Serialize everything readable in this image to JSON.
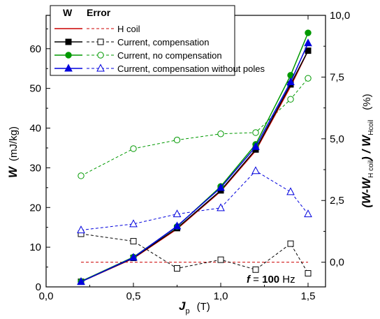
{
  "chart_data": {
    "type": "line",
    "x_axis": {
      "symbol": "J",
      "subscript": "p",
      "unit": "(T)",
      "lim": [
        0,
        1.6
      ],
      "ticks": [
        0,
        0.5,
        1.0,
        1.5
      ],
      "tick_labels": [
        "0,0",
        "0,5",
        "1,0",
        "1,5"
      ]
    },
    "y_axis_left": {
      "symbol": "W",
      "unit": "(mJ/kg)",
      "lim": [
        0,
        68.4
      ],
      "ticks": [
        0,
        10,
        20,
        30,
        40,
        50,
        60
      ],
      "tick_labels": [
        "0",
        "10",
        "20",
        "30",
        "40",
        "50",
        "60"
      ]
    },
    "y_axis_right": {
      "label_parts": [
        "(",
        "W",
        "-",
        "W",
        "H coil",
        ")",
        " / ",
        "W",
        "Hcoil"
      ],
      "unit": "(%)",
      "lim": [
        -1.0,
        10.0
      ],
      "ticks": [
        0,
        2.5,
        5.0,
        7.5,
        10.0
      ],
      "tick_labels": [
        "0,0",
        "2,5",
        "5,0",
        "7,5",
        "10,0"
      ]
    },
    "annotation": {
      "prefix": "f",
      "equals": " = ",
      "value": "100",
      "unit": " Hz"
    },
    "legend": {
      "position": "top",
      "header_w": "W",
      "header_error": "Error"
    },
    "series": [
      {
        "name": "H coil",
        "color": "#cc0000",
        "marker": "none",
        "axis": "left",
        "x": [
          0.2,
          0.5,
          0.75,
          1.0,
          1.2,
          1.4,
          1.5
        ],
        "y": [
          1.3,
          7.2,
          14.6,
          24.1,
          34.3,
          50.5,
          59.5
        ]
      },
      {
        "name": "Current, compensation",
        "color": "#000000",
        "marker": "square",
        "axis": "left",
        "x": [
          0.2,
          0.5,
          0.75,
          1.0,
          1.2,
          1.4,
          1.5
        ],
        "y": [
          1.3,
          7.3,
          14.8,
          24.3,
          34.6,
          51.0,
          59.5
        ]
      },
      {
        "name": "Current, no compensation",
        "color": "#009900",
        "marker": "circle",
        "axis": "left",
        "x": [
          0.2,
          0.5,
          0.75,
          1.0,
          1.2,
          1.4,
          1.5
        ],
        "y": [
          1.4,
          7.5,
          15.2,
          25.3,
          35.9,
          53.3,
          64.0
        ]
      },
      {
        "name": "Current, compensation without poles",
        "color": "#0000dd",
        "marker": "triangle",
        "axis": "left",
        "x": [
          0.2,
          0.5,
          0.75,
          1.0,
          1.2,
          1.4,
          1.5
        ],
        "y": [
          1.3,
          7.4,
          15.3,
          25.0,
          35.3,
          51.6,
          61.4
        ]
      },
      {
        "name": "H coil",
        "color": "#cc0000",
        "marker": "none",
        "axis": "right",
        "dashed": true,
        "x": [
          0.2,
          1.5
        ],
        "y": [
          0.0,
          0.0
        ]
      },
      {
        "name": "Current, compensation",
        "color": "#000000",
        "marker": "square-open",
        "axis": "right",
        "dashed": true,
        "x": [
          0.2,
          0.5,
          0.75,
          1.0,
          1.2,
          1.4,
          1.5
        ],
        "y": [
          1.15,
          0.85,
          -0.25,
          0.1,
          -0.3,
          0.75,
          -0.45
        ]
      },
      {
        "name": "Current, no compensation",
        "color": "#009900",
        "marker": "circle-open",
        "axis": "right",
        "dashed": true,
        "x": [
          0.2,
          0.5,
          0.75,
          1.0,
          1.2,
          1.4,
          1.5
        ],
        "y": [
          3.5,
          4.6,
          4.95,
          5.2,
          5.25,
          6.6,
          7.45
        ]
      },
      {
        "name": "Current, compensation without poles",
        "color": "#0000dd",
        "marker": "triangle-open",
        "axis": "right",
        "dashed": true,
        "x": [
          0.2,
          0.5,
          0.75,
          1.0,
          1.2,
          1.4,
          1.5
        ],
        "y": [
          1.3,
          1.55,
          1.95,
          2.2,
          3.7,
          2.85,
          1.95
        ]
      }
    ]
  }
}
